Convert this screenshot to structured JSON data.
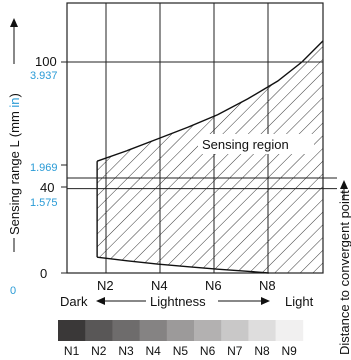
{
  "chart_data": {
    "type": "area",
    "x_categories": [
      "N2",
      "N4",
      "N6",
      "N8"
    ],
    "x_domain": [
      1,
      9.5
    ],
    "y_ticks_mm": [
      0,
      40,
      50,
      100
    ],
    "y_tick_labels_mm": [
      "0",
      "40",
      "",
      "100"
    ],
    "y_ticks_inch_labels": [
      "0",
      "1.575",
      "1.969",
      "3.937"
    ],
    "y_range_mm": [
      0,
      120
    ],
    "ylabel": "Sensing range L (mm in)",
    "ylabel_prefix": "Sensing range L (mm ",
    "ylabel_unit_in": "in",
    "ylabel_suffix": ")",
    "right_label": "Distance to convergent point",
    "region_label": "Sensing region",
    "upper_boundary": {
      "x": [
        2,
        3,
        4,
        5,
        6,
        7,
        8,
        8.8,
        9.5
      ],
      "y": [
        53,
        58,
        63.5,
        69,
        75,
        82.5,
        91,
        100,
        110
      ]
    },
    "lower_boundary": {
      "x": [
        2,
        3,
        4,
        5,
        6,
        7,
        7.7
      ],
      "y": [
        7.5,
        5.8,
        4.2,
        3.0,
        1.8,
        0.8,
        0
      ]
    },
    "reference_lines": [
      45,
      40
    ],
    "lightness_axis": {
      "dark": "Dark",
      "label": "Lightness",
      "light": "Light"
    },
    "grayscale": {
      "labels": [
        "N1",
        "N2",
        "N3",
        "N4",
        "N5",
        "N6",
        "N7",
        "N8",
        "N9"
      ],
      "colors": [
        "#3a3838",
        "#595757",
        "#6e6c6c",
        "#858383",
        "#9c9a9a",
        "#b3b1b1",
        "#c9c8c8",
        "#dedddd",
        "#f1f0f0"
      ]
    }
  }
}
